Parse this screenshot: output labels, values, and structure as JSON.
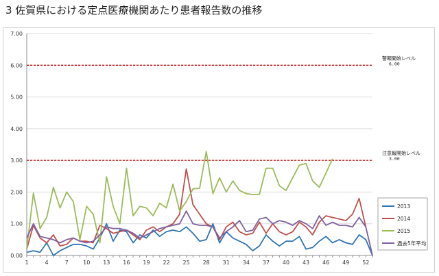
{
  "chart_data": {
    "type": "line",
    "title": "3 佐賀県における定点医療機関あたり患者報告数の推移",
    "xlabel": "",
    "ylabel": "",
    "ylim": [
      0,
      7
    ],
    "xlim": [
      1,
      53
    ],
    "yticks": [
      "0.00",
      "1.00",
      "2.00",
      "3.00",
      "4.00",
      "5.00",
      "6.00",
      "7.00"
    ],
    "xticks": [
      1,
      4,
      7,
      10,
      13,
      16,
      19,
      22,
      25,
      28,
      31,
      34,
      37,
      40,
      43,
      46,
      49,
      52
    ],
    "grid": true,
    "legend_position": "right",
    "thresholds": [
      {
        "label": "警報開始レベル",
        "value_label": "6.00",
        "value": 6,
        "color": "#c00000"
      },
      {
        "label": "注意報開始レベル",
        "value_label": "3.00",
        "value": 3,
        "color": "#c00000"
      }
    ],
    "series": [
      {
        "name": "2013",
        "color": "#2e75b6",
        "values": [
          0.1,
          0.15,
          0.1,
          0.4,
          0.0,
          0.15,
          0.25,
          0.35,
          0.35,
          0.3,
          0.2,
          0.55,
          1.0,
          0.45,
          0.8,
          0.75,
          0.4,
          0.65,
          0.55,
          0.8,
          0.6,
          0.75,
          0.8,
          0.75,
          0.9,
          0.7,
          0.45,
          0.5,
          1.0,
          0.4,
          0.75,
          0.55,
          0.45,
          0.35,
          0.15,
          0.3,
          0.65,
          0.45,
          0.3,
          0.45,
          0.45,
          0.6,
          0.2,
          0.25,
          0.45,
          0.6,
          0.4,
          0.5,
          0.4,
          0.35,
          0.65,
          0.5,
          0.0
        ]
      },
      {
        "name": "2014",
        "color": "#c0504d",
        "values": [
          0.2,
          0.95,
          0.55,
          0.4,
          0.65,
          0.3,
          0.35,
          0.55,
          0.45,
          0.45,
          0.4,
          0.95,
          0.85,
          0.7,
          0.75,
          0.8,
          0.65,
          0.5,
          0.8,
          0.9,
          0.75,
          0.9,
          1.0,
          1.3,
          2.73,
          1.6,
          1.3,
          1.0,
          0.9,
          0.5,
          0.9,
          1.05,
          0.75,
          0.65,
          0.7,
          1.05,
          0.7,
          1.0,
          0.75,
          0.65,
          0.75,
          1.05,
          0.9,
          0.65,
          1.05,
          1.25,
          1.2,
          1.15,
          1.1,
          1.3,
          1.8,
          0.9
        ]
      },
      {
        "name": "2015",
        "color": "#9bbb59",
        "values": [
          0.2,
          1.97,
          0.85,
          1.2,
          2.15,
          1.5,
          2.0,
          1.7,
          0.5,
          1.55,
          1.3,
          0.4,
          2.48,
          1.55,
          1.0,
          2.75,
          1.25,
          1.55,
          1.5,
          1.25,
          1.65,
          1.5,
          2.25,
          1.4,
          1.7,
          2.1,
          2.12,
          3.28,
          1.95,
          2.45,
          2.0,
          2.35,
          2.05,
          1.95,
          1.92,
          1.93,
          2.75,
          2.75,
          2.2,
          2.05,
          2.45,
          2.85,
          2.9,
          2.35,
          2.15,
          2.6,
          3.05
        ]
      },
      {
        "name": "過去5年平均",
        "color": "#7d60a0",
        "values": [
          0.55,
          1.0,
          0.6,
          0.55,
          0.5,
          0.4,
          0.5,
          0.55,
          0.45,
          0.4,
          0.45,
          0.65,
          0.9,
          0.85,
          0.85,
          0.8,
          0.7,
          0.55,
          0.65,
          0.75,
          0.85,
          0.9,
          0.95,
          1.0,
          1.4,
          1.0,
          0.95,
          0.95,
          0.9,
          0.55,
          0.75,
          0.9,
          1.1,
          0.75,
          0.8,
          1.15,
          1.2,
          1.0,
          1.1,
          1.05,
          0.95,
          1.1,
          1.0,
          0.85,
          1.25,
          0.95,
          1.05,
          0.95,
          0.95,
          0.9,
          1.2,
          0.9,
          0.0
        ]
      }
    ]
  }
}
